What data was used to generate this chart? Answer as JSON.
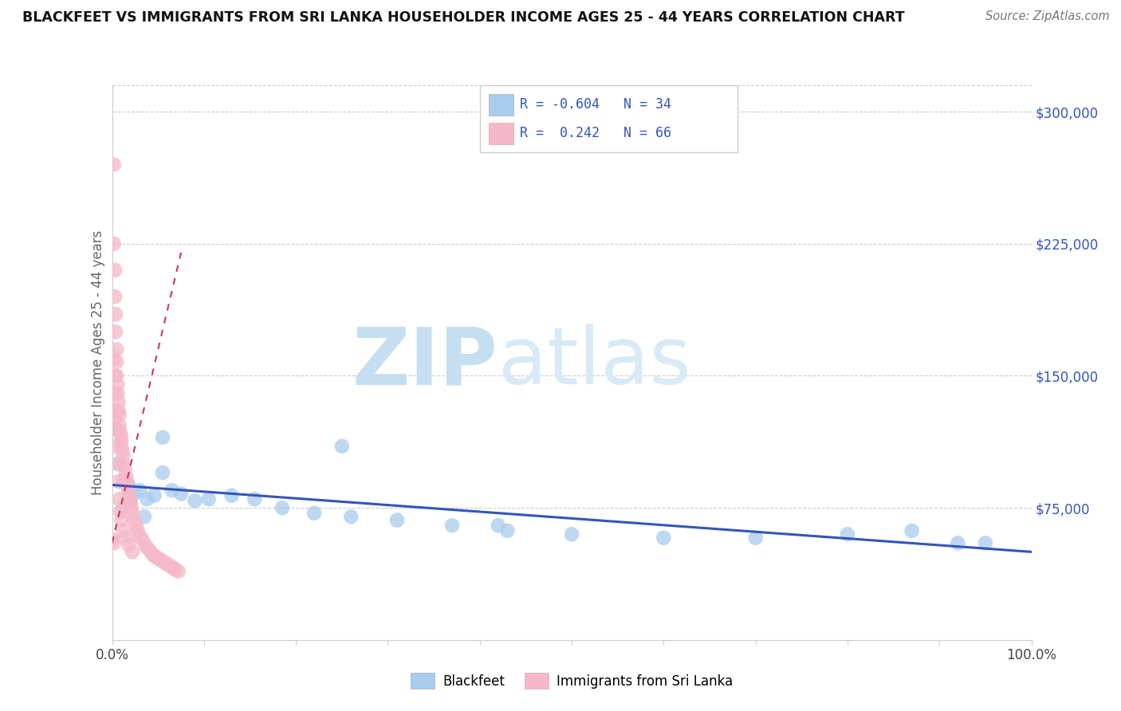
{
  "title": "BLACKFEET VS IMMIGRANTS FROM SRI LANKA HOUSEHOLDER INCOME AGES 25 - 44 YEARS CORRELATION CHART",
  "source": "Source: ZipAtlas.com",
  "ylabel": "Householder Income Ages 25 - 44 years",
  "watermark_zip": "ZIP",
  "watermark_atlas": "atlas",
  "blue_label": "Blackfeet",
  "pink_label": "Immigrants from Sri Lanka",
  "blue_R": "-0.604",
  "blue_N": "34",
  "pink_R": " 0.242",
  "pink_N": "66",
  "ytick_vals": [
    75000,
    150000,
    225000,
    300000
  ],
  "ytick_labels": [
    "$75,000",
    "$150,000",
    "$225,000",
    "$300,000"
  ],
  "blue_fill": "#aaccee",
  "pink_fill": "#f5b8c8",
  "blue_line": "#3355bb",
  "pink_line": "#cc3366",
  "label_color": "#3355bb",
  "grid_color": "#cccccc",
  "xlim": [
    0.0,
    1.0
  ],
  "ylim": [
    0,
    315000
  ],
  "blue_x": [
    0.003,
    0.007,
    0.012,
    0.018,
    0.024,
    0.03,
    0.038,
    0.046,
    0.055,
    0.065,
    0.075,
    0.09,
    0.105,
    0.13,
    0.155,
    0.185,
    0.22,
    0.26,
    0.31,
    0.37,
    0.43,
    0.5,
    0.6,
    0.7,
    0.8,
    0.87,
    0.92,
    0.95,
    0.012,
    0.02,
    0.035,
    0.055,
    0.25,
    0.42
  ],
  "blue_y": [
    120000,
    100000,
    90000,
    88000,
    83000,
    85000,
    80000,
    82000,
    95000,
    85000,
    83000,
    79000,
    80000,
    82000,
    80000,
    75000,
    72000,
    70000,
    68000,
    65000,
    62000,
    60000,
    58000,
    58000,
    60000,
    62000,
    55000,
    55000,
    75000,
    78000,
    70000,
    115000,
    110000,
    65000
  ],
  "pink_x": [
    0.002,
    0.002,
    0.003,
    0.003,
    0.004,
    0.004,
    0.005,
    0.005,
    0.005,
    0.006,
    0.006,
    0.007,
    0.007,
    0.008,
    0.008,
    0.009,
    0.01,
    0.01,
    0.011,
    0.012,
    0.013,
    0.014,
    0.015,
    0.016,
    0.017,
    0.018,
    0.019,
    0.02,
    0.021,
    0.022,
    0.024,
    0.026,
    0.028,
    0.03,
    0.033,
    0.036,
    0.039,
    0.042,
    0.045,
    0.048,
    0.051,
    0.054,
    0.057,
    0.06,
    0.063,
    0.066,
    0.069,
    0.072,
    0.002,
    0.003,
    0.003,
    0.004,
    0.005,
    0.005,
    0.006,
    0.007,
    0.008,
    0.009,
    0.01,
    0.012,
    0.015,
    0.018,
    0.022,
    0.003,
    0.001,
    0.002
  ],
  "pink_y": [
    270000,
    225000,
    210000,
    195000,
    185000,
    175000,
    165000,
    158000,
    150000,
    145000,
    140000,
    135000,
    130000,
    128000,
    122000,
    118000,
    115000,
    112000,
    108000,
    105000,
    100000,
    97000,
    93000,
    90000,
    87000,
    84000,
    81000,
    78000,
    75000,
    72000,
    68000,
    65000,
    62000,
    59000,
    57000,
    54000,
    52000,
    50000,
    48000,
    47000,
    46000,
    45000,
    44000,
    43000,
    42000,
    41000,
    40000,
    39000,
    160000,
    150000,
    140000,
    130000,
    120000,
    110000,
    100000,
    90000,
    80000,
    73000,
    68000,
    62000,
    58000,
    54000,
    50000,
    125000,
    57000,
    55000
  ],
  "blue_trend_x": [
    0.0,
    1.0
  ],
  "blue_trend_y": [
    88000,
    50000
  ],
  "pink_trend_x": [
    0.0,
    0.075
  ],
  "pink_trend_y": [
    55000,
    220000
  ]
}
